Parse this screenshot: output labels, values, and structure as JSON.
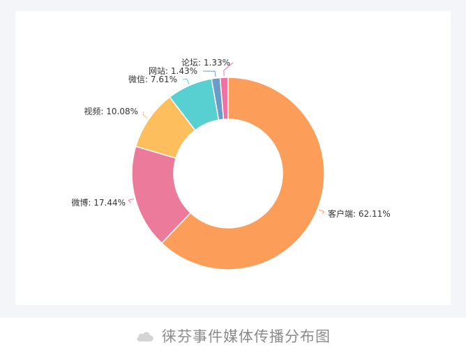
{
  "chart_data": {
    "type": "pie",
    "donut": true,
    "title": "",
    "slices": [
      {
        "label": "客户端",
        "value": 62.11,
        "display": "客户端: 62.11%",
        "color": "#fc9d5a"
      },
      {
        "label": "微博",
        "value": 17.44,
        "display": "微博: 17.44%",
        "color": "#ec7b9b"
      },
      {
        "label": "视频",
        "value": 10.08,
        "display": "视频: 10.08%",
        "color": "#fdbf5e"
      },
      {
        "label": "微信",
        "value": 7.61,
        "display": "微信: 7.61%",
        "color": "#58cfd0"
      },
      {
        "label": "网站",
        "value": 1.43,
        "display": "网站: 1.43%",
        "color": "#6b9bc9"
      },
      {
        "label": "论坛",
        "value": 1.33,
        "display": "论坛: 1.33%",
        "color": "#f06fa5"
      }
    ]
  },
  "caption": {
    "icon": "cloud-icon",
    "text": "徕芬事件媒体传播分布图"
  }
}
